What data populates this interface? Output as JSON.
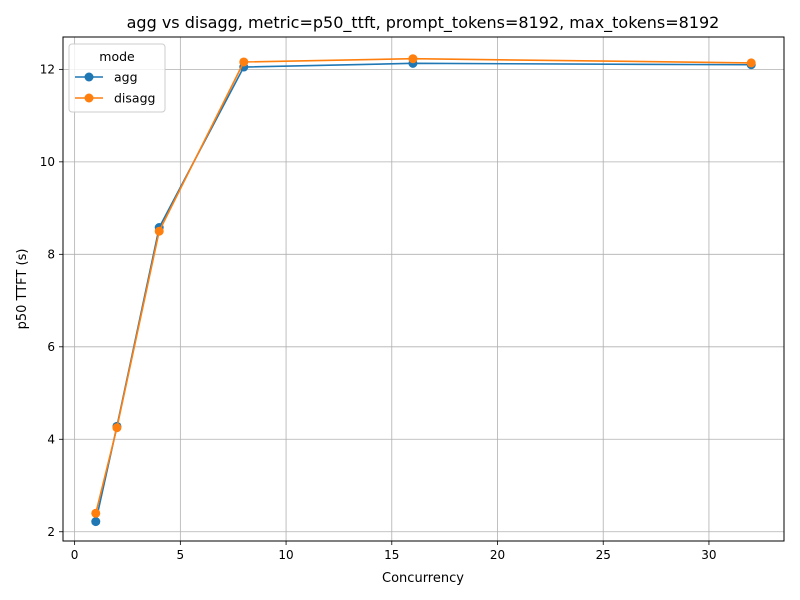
{
  "chart_data": {
    "type": "line",
    "title": "agg vs disagg, metric=p50_ttft, prompt_tokens=8192, max_tokens=8192",
    "xlabel": "Concurrency",
    "ylabel": "p50 TTFT (s)",
    "xlim": [
      -0.55,
      33.55
    ],
    "ylim": [
      1.8,
      12.7
    ],
    "xticks": [
      0,
      5,
      10,
      15,
      20,
      25,
      30
    ],
    "yticks": [
      2,
      4,
      6,
      8,
      10,
      12
    ],
    "grid": true,
    "legend": {
      "title": "mode",
      "placement": "top-left"
    },
    "x": [
      1,
      2,
      4,
      8,
      16,
      32
    ],
    "series": [
      {
        "name": "agg",
        "color": "#1f77b4",
        "marker": "circle",
        "values": [
          2.22,
          4.28,
          8.58,
          12.05,
          12.13,
          12.1
        ]
      },
      {
        "name": "disagg",
        "color": "#ff7f0e",
        "marker": "circle",
        "values": [
          2.4,
          4.25,
          8.5,
          12.16,
          12.23,
          12.14
        ]
      }
    ]
  }
}
